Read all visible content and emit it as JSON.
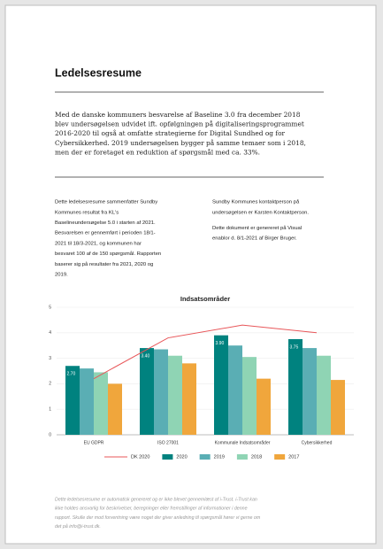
{
  "document": {
    "title": "Ledelsesresume",
    "intro": [
      "Med de danske kommuners besvarelse af Baseline 3.0 fra december 2018",
      "blev undersøgelsen udvidet ift. opfølgningen på digitaliseringsprogrammet",
      "2016-2020 til også at omfatte strategierne for Digital Sundhed og for",
      "Cybersikkerhed. 2019 undersøgelsen bygger på samme temaer som i 2018,",
      "men der er foretaget en reduktion af spørgsmål med ca. 33%."
    ],
    "left_column": [
      "Dette ledelsesresume sammenfatter Sundby",
      "Kommunes resultat fra KL's",
      "Baselineundersøgelse 5.0 i starten af 2021.",
      "Besvarelsen er gennemført i perioden 18/1-",
      "2021 til 18/3-2021, og kommunen har",
      "besvaret 100 af de 150 spørgsmål. Rapporten",
      "baserer sig på resultater fra 2021, 2020 og",
      "2019."
    ],
    "right_column": [
      [
        "Sundby Kommunes kontaktperson på",
        "undersøgelsen er Karsten Kontaktperson."
      ],
      [
        "Dette dokument er genereret på Visual",
        "enablor d. 8/1-2021 af Birger Bruger."
      ]
    ],
    "footer": [
      "Dette ledelsesresume er automatisk genereret og er ikke blevet gennemlæst af i-Trust. i-Trust kan",
      "ikke holdes ansvarlig for beskrivelser, beregninger eller fremstillinger af informationer i denne",
      "rapport. Skulle der mod forventning være noget der giver anledning til spørgsmål hører vi gerne om",
      "det på info@i-trust.dk."
    ]
  },
  "chart_data": {
    "type": "bar",
    "title": "Indsatsområder",
    "categories": [
      "EU GDPR",
      "ISO 27001",
      "Kommunale Indsatsområder",
      "Cybersikkerhed"
    ],
    "ylim": [
      0,
      5
    ],
    "yticks": [
      0,
      1,
      2,
      3,
      4,
      5
    ],
    "grid": true,
    "legend": "bottom",
    "series": [
      {
        "name": "DK 2020",
        "type": "line",
        "color": "#e8575a",
        "values": [
          2.2,
          3.8,
          4.3,
          4.0
        ]
      },
      {
        "name": "2020",
        "color": "#00827f",
        "values": [
          2.7,
          3.4,
          3.9,
          3.75
        ],
        "value_labels": [
          "2.70",
          "3.40",
          "3.90",
          "3.75"
        ]
      },
      {
        "name": "2019",
        "color": "#5aaeb4",
        "values": [
          2.6,
          3.35,
          3.5,
          3.4
        ]
      },
      {
        "name": "2018",
        "color": "#8fd4b4",
        "values": [
          2.45,
          3.1,
          3.05,
          3.1
        ]
      },
      {
        "name": "2017",
        "color": "#f0a63c",
        "values": [
          2.0,
          2.8,
          2.2,
          2.15
        ]
      }
    ]
  }
}
